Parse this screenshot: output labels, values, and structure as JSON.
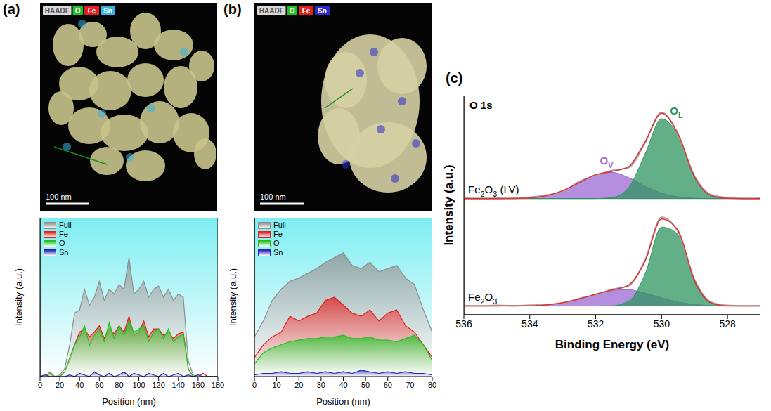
{
  "chart_data": [
    {
      "type": "image",
      "panel": "(a)",
      "channels": [
        {
          "name": "HAADF",
          "color": "#d9d9d9"
        },
        {
          "name": "O",
          "color": "#22c022"
        },
        {
          "name": "Fe",
          "color": "#e02020"
        },
        {
          "name": "Sn",
          "color": "#3ab0e0"
        }
      ],
      "scale_bar": "100 nm"
    },
    {
      "type": "area",
      "x": [
        0,
        5,
        10,
        15,
        20,
        25,
        30,
        35,
        40,
        45,
        50,
        55,
        60,
        65,
        70,
        75,
        80,
        85,
        90,
        95,
        100,
        105,
        110,
        115,
        120,
        125,
        130,
        135,
        140,
        145,
        150,
        155,
        160,
        165,
        170,
        175,
        180
      ],
      "series": [
        {
          "name": "Full",
          "color": "#8c8c8c",
          "values": [
            0,
            0,
            3,
            0,
            1,
            5,
            20,
            40,
            42,
            55,
            45,
            50,
            60,
            48,
            55,
            52,
            58,
            55,
            75,
            52,
            55,
            60,
            50,
            55,
            57,
            50,
            55,
            48,
            52,
            50,
            10,
            1,
            0,
            2,
            0,
            0,
            0
          ]
        },
        {
          "name": "Fe",
          "color": "#e02020",
          "values": [
            0,
            0,
            1,
            0,
            0,
            3,
            10,
            20,
            28,
            30,
            25,
            28,
            32,
            24,
            30,
            27,
            32,
            28,
            38,
            26,
            28,
            35,
            25,
            30,
            30,
            26,
            28,
            24,
            27,
            28,
            5,
            0,
            0,
            2,
            0,
            0,
            0
          ]
        },
        {
          "name": "O",
          "color": "#1fbf1f",
          "values": [
            0,
            0,
            2,
            0,
            0,
            3,
            12,
            20,
            25,
            32,
            20,
            26,
            30,
            22,
            34,
            24,
            32,
            26,
            35,
            28,
            30,
            32,
            22,
            28,
            30,
            24,
            30,
            22,
            25,
            27,
            5,
            0,
            0,
            0,
            0,
            0,
            0
          ]
        },
        {
          "name": "Sn",
          "color": "#2424b8",
          "values": [
            0,
            1,
            0,
            0,
            0,
            0,
            1,
            0,
            2,
            1,
            0,
            3,
            1,
            0,
            2,
            0,
            1,
            3,
            0,
            2,
            1,
            0,
            2,
            1,
            0,
            2,
            0,
            1,
            2,
            0,
            1,
            0,
            1,
            0,
            0,
            0,
            0
          ]
        }
      ],
      "xlim": [
        0,
        180
      ],
      "xticks": [
        0,
        20,
        40,
        60,
        80,
        100,
        120,
        140,
        160,
        180
      ],
      "ylim": [
        0,
        100
      ],
      "tick_labels": "x",
      "x_label": "Position (nm)",
      "y_label": "Intensity (a.u.)",
      "legend": "upper left"
    },
    {
      "type": "image",
      "panel": "(b)",
      "channels": [
        {
          "name": "HAADF",
          "color": "#d9d9d9"
        },
        {
          "name": "O",
          "color": "#22c022"
        },
        {
          "name": "Fe",
          "color": "#e02020"
        },
        {
          "name": "Sn",
          "color": "#2a2ad0"
        }
      ],
      "scale_bar": "100 nm"
    },
    {
      "type": "area",
      "x": [
        0,
        4,
        8,
        12,
        16,
        20,
        24,
        28,
        32,
        36,
        40,
        44,
        48,
        52,
        56,
        60,
        64,
        68,
        72,
        76,
        80
      ],
      "series": [
        {
          "name": "Full",
          "color": "#8c8c8c",
          "values": [
            25,
            35,
            48,
            55,
            60,
            62,
            65,
            68,
            72,
            75,
            78,
            70,
            68,
            72,
            66,
            68,
            70,
            62,
            58,
            42,
            28
          ]
        },
        {
          "name": "Fe",
          "color": "#e02020",
          "values": [
            12,
            20,
            25,
            28,
            38,
            35,
            38,
            40,
            48,
            50,
            45,
            40,
            38,
            42,
            35,
            40,
            42,
            32,
            28,
            20,
            12
          ]
        },
        {
          "name": "O",
          "color": "#1fbf1f",
          "values": [
            8,
            15,
            18,
            20,
            22,
            23,
            24,
            24,
            25,
            25,
            26,
            24,
            24,
            25,
            23,
            23,
            22,
            24,
            26,
            20,
            10
          ]
        },
        {
          "name": "Sn",
          "color": "#2424b8",
          "values": [
            1,
            2,
            2,
            3,
            2,
            2,
            3,
            2,
            3,
            2,
            3,
            2,
            4,
            3,
            2,
            3,
            2,
            3,
            2,
            2,
            1
          ]
        }
      ],
      "xlim": [
        0,
        80
      ],
      "xticks": [
        0,
        10,
        20,
        30,
        40,
        50,
        60,
        70,
        80
      ],
      "ylim": [
        0,
        100
      ],
      "tick_labels": "x",
      "x_label": "Position (nm)",
      "y_label": "Intensity (a.u.)",
      "legend": "upper left"
    },
    {
      "type": "line",
      "panel": "(c)",
      "title": "O 1s",
      "x": [
        536,
        535.5,
        535,
        534.5,
        534,
        533.5,
        533,
        532.5,
        532,
        531.5,
        531,
        530.5,
        530,
        529.5,
        529,
        528.5,
        528,
        527.5,
        527
      ],
      "xlim": [
        536,
        527
      ],
      "xticks": [
        536,
        534,
        532,
        530,
        528
      ],
      "ylim": [
        0,
        100
      ],
      "tick_labels": "x",
      "x_label": "Binding Energy (eV)",
      "y_label": "Intensity (a.u.)",
      "spectra": [
        {
          "label": "Fe2O3 (LV)",
          "baseline": 53,
          "raw": {
            "color": "#a6a6a6",
            "values": [
              53.3,
              53.1,
              53.2,
              53.0,
              53.6,
              54.6,
              56.2,
              60.8,
              63.5,
              65.9,
              67.1,
              78.4,
              92.3,
              82,
              63.4,
              54.8,
              53.4,
              53.1,
              53.2
            ]
          },
          "fit": {
            "color": "#e03131",
            "values": [
              53,
              53,
              53,
              53.1,
              53.3,
              54.3,
              56.6,
              60.3,
              63.9,
              65.4,
              67.6,
              79,
              91.9,
              82.5,
              62.8,
              54.4,
              53.1,
              53,
              53
            ]
          },
          "components": [
            {
              "name": "OV",
              "color": "#9b6ad6",
              "values": [
                53,
                53,
                53,
                53.1,
                53.3,
                54.3,
                56.6,
                60.3,
                63.9,
                64.9,
                62.6,
                58.6,
                55.5,
                53.8,
                53.2,
                53,
                53,
                53,
                53
              ]
            },
            {
              "name": "OL",
              "color": "#2e9460",
              "values": [
                53,
                53,
                53,
                53,
                53,
                53,
                53,
                53,
                53,
                53.5,
                58,
                73.4,
                89.4,
                81.7,
                62.6,
                54.4,
                53.1,
                53,
                53
              ]
            }
          ]
        },
        {
          "label": "Fe2O3",
          "baseline": 4,
          "raw": {
            "color": "#a6a6a6",
            "values": [
              4.2,
              4.1,
              4.3,
              4.0,
              4.4,
              4.7,
              5.3,
              7.5,
              9.1,
              11.6,
              13.2,
              25.1,
              44.5,
              37.8,
              16.1,
              5.8,
              4.3,
              4.1,
              4.2
            ]
          },
          "fit": {
            "color": "#e03131",
            "values": [
              4,
              4,
              4,
              4.1,
              4.1,
              4.5,
              5.5,
              7.2,
              9.4,
              11.3,
              13.6,
              24.5,
              43.7,
              38.4,
              15.5,
              5.5,
              4,
              4,
              4
            ]
          },
          "components": [
            {
              "color": "#9b6ad6",
              "values": [
                4,
                4,
                4,
                4.1,
                4.1,
                4.5,
                5.5,
                7.2,
                9.4,
                11.2,
                11.4,
                9.9,
                7.7,
                5.8,
                4.7,
                4.2,
                4,
                4,
                4
              ]
            },
            {
              "color": "#2e9460",
              "values": [
                4,
                4,
                4,
                4,
                4,
                4,
                4,
                4,
                4,
                4.1,
                6.2,
                18.6,
                40,
                36.6,
                14.8,
                5.3,
                4,
                4,
                4
              ]
            }
          ]
        }
      ]
    }
  ]
}
